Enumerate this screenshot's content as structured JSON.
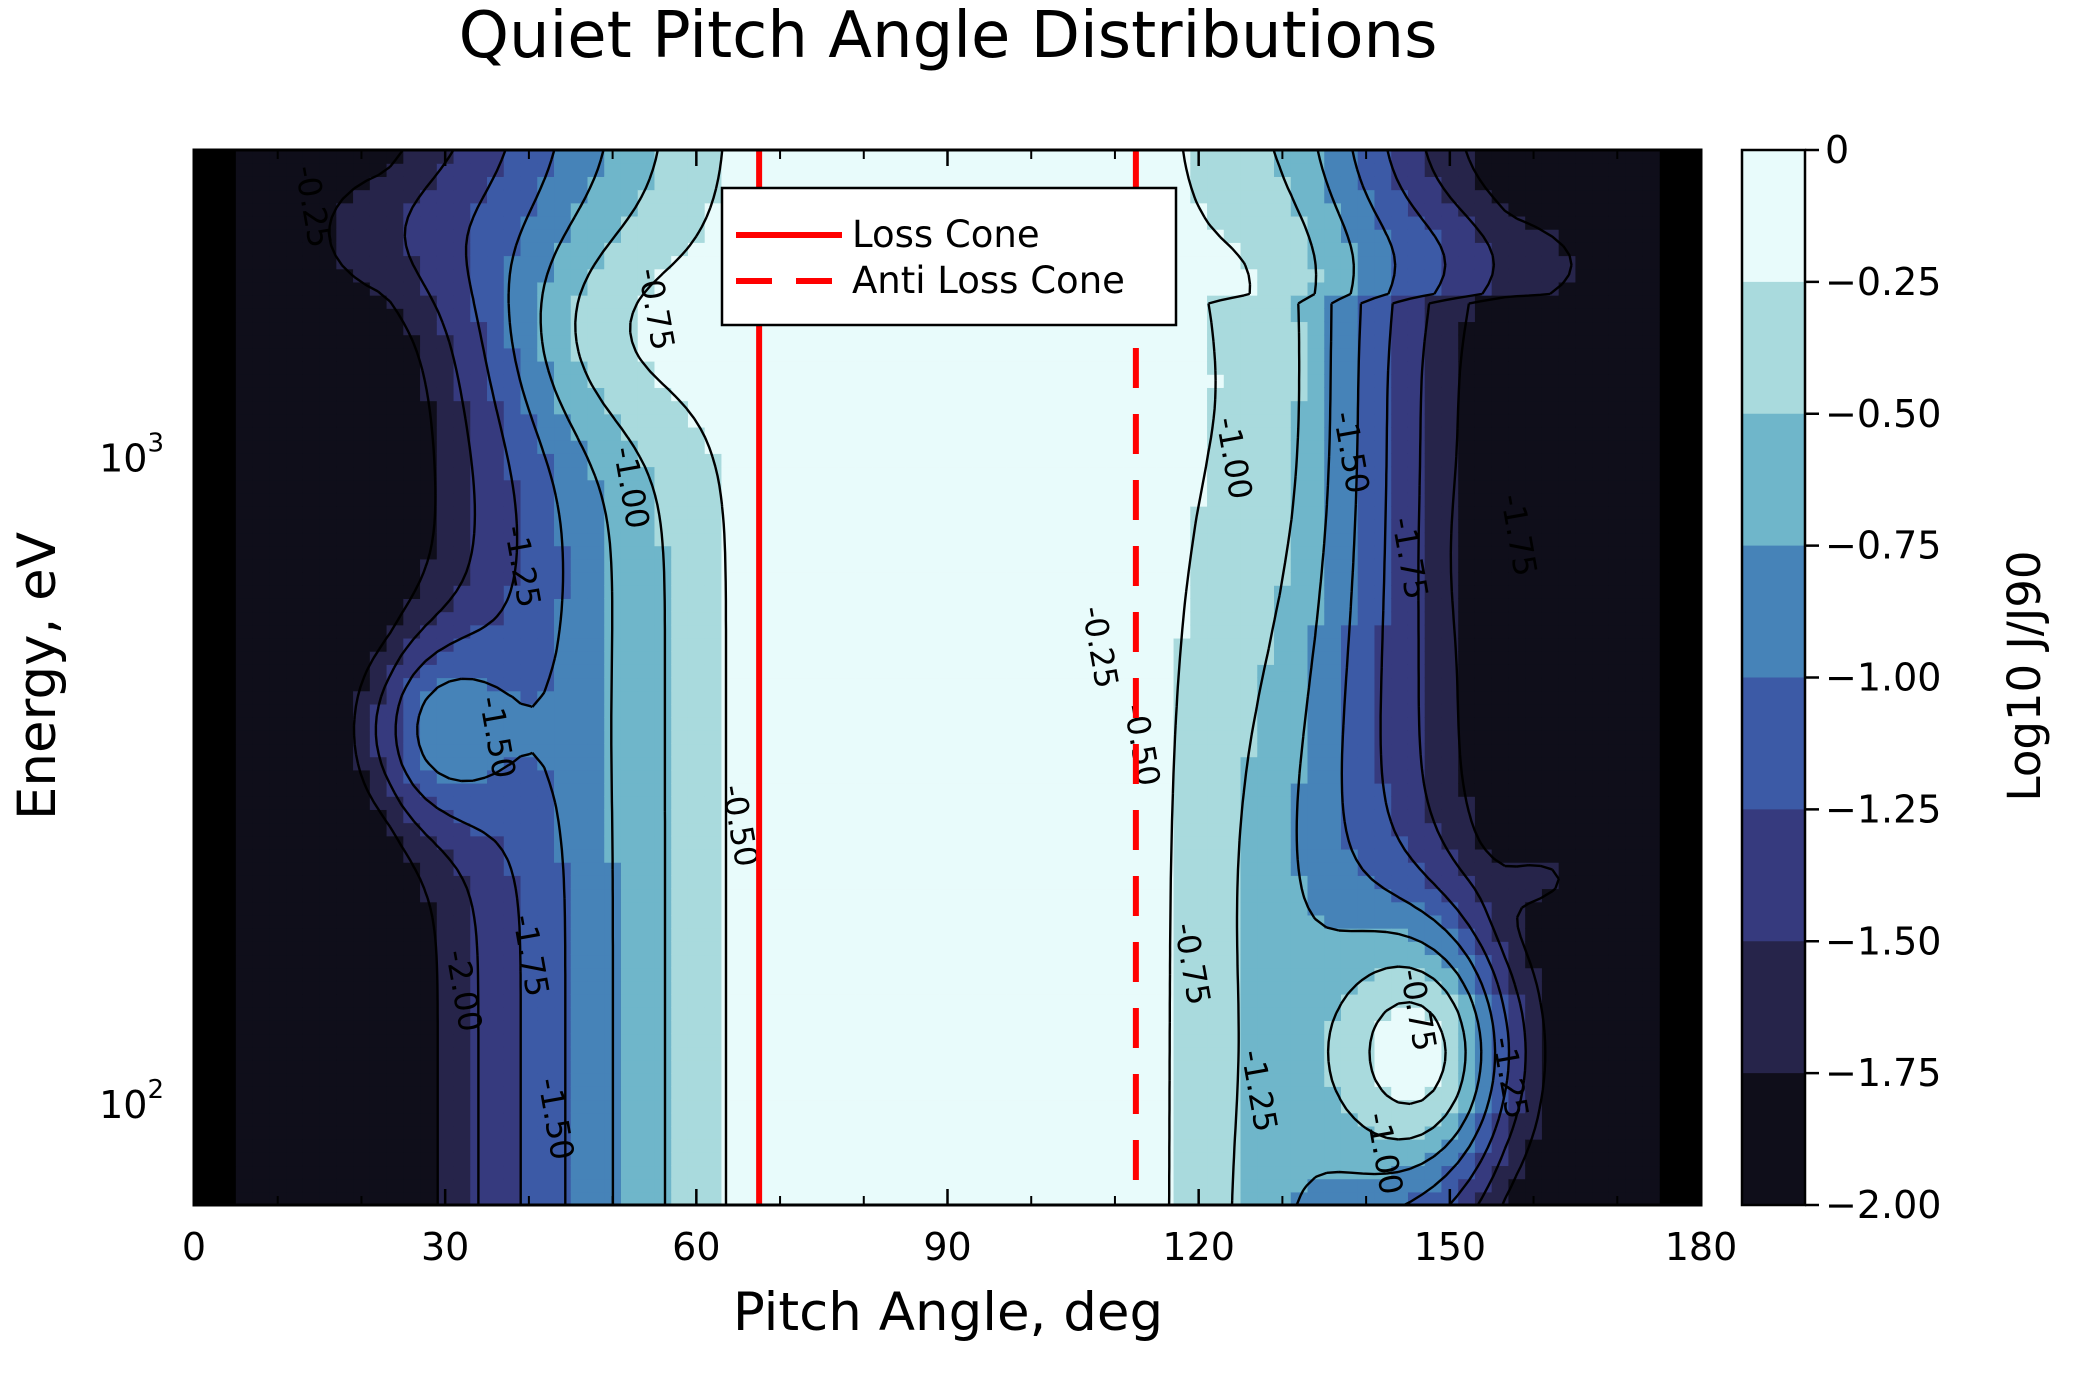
{
  "chart_data": {
    "type": "contour",
    "title": "Quiet Pitch Angle Distributions",
    "xlabel": "Pitch Angle, deg",
    "ylabel": "Energy, eV",
    "xlim": [
      0,
      180
    ],
    "ylim": [
      70,
      3000
    ],
    "yscale": "log",
    "x_ticks": [
      0,
      30,
      60,
      90,
      120,
      150,
      180
    ],
    "x_tick_labels": [
      "0",
      "30",
      "60",
      "90",
      "120",
      "150",
      "180"
    ],
    "y_ticks": [
      100,
      1000
    ],
    "y_tick_labels": [
      {
        "base": "10",
        "exp": "2"
      },
      {
        "base": "10",
        "exp": "3"
      }
    ],
    "colorbar": {
      "label": "Log10 J/J90",
      "range": [
        -2.0,
        0
      ],
      "ticks": [
        0,
        -0.25,
        -0.5,
        -0.75,
        -1.0,
        -1.25,
        -1.5,
        -1.75,
        -2.0
      ],
      "tick_labels": [
        "0",
        "−0.25",
        "−0.50",
        "−0.75",
        "−1.00",
        "−1.25",
        "−1.50",
        "−1.75",
        "−2.00"
      ],
      "colors": [
        "#e8fbfb",
        "#a9dadd",
        "#6fb6ca",
        "#4683b8",
        "#3c5aa6",
        "#363a7e",
        "#26244a",
        "#0f0e1a"
      ]
    },
    "no_data_color": "#000000",
    "contour_levels": [
      -2.0,
      -1.75,
      -1.5,
      -1.25,
      -1.0,
      -0.75,
      -0.5,
      -0.25,
      0
    ],
    "contour_labels": [
      {
        "text": "-0.25",
        "x": 14,
        "y": 2450
      },
      {
        "text": "-0.75",
        "x": 55,
        "y": 1700
      },
      {
        "text": "-1.00",
        "x": 52,
        "y": 900
      },
      {
        "text": "-1.25",
        "x": 39,
        "y": 680
      },
      {
        "text": "-1.50",
        "x": 36,
        "y": 370
      },
      {
        "text": "-1.75",
        "x": 40,
        "y": 170
      },
      {
        "text": "-2.00",
        "x": 32,
        "y": 150
      },
      {
        "text": "-1.50",
        "x": 43,
        "y": 95
      },
      {
        "text": "-0.50",
        "x": 65,
        "y": 270
      },
      {
        "text": "-0.25",
        "x": 108,
        "y": 510
      },
      {
        "text": "-0.50",
        "x": 113,
        "y": 360
      },
      {
        "text": "-0.75",
        "x": 119,
        "y": 165
      },
      {
        "text": "-1.00",
        "x": 124,
        "y": 1000
      },
      {
        "text": "-1.25",
        "x": 127,
        "y": 105
      },
      {
        "text": "-1.50",
        "x": 138,
        "y": 1020
      },
      {
        "text": "-1.75",
        "x": 145,
        "y": 700
      },
      {
        "text": "-0.75",
        "x": 146,
        "y": 140
      },
      {
        "text": "-1.00",
        "x": 142,
        "y": 84
      },
      {
        "text": "-1.25",
        "x": 157,
        "y": 110
      },
      {
        "text": "-1.75",
        "x": 158,
        "y": 760
      }
    ],
    "vlines": [
      {
        "name": "Loss Cone",
        "x": 67.5,
        "style": "solid",
        "color": "#ff0000"
      },
      {
        "name": "Anti Loss Cone",
        "x": 112.5,
        "style": "dashed",
        "color": "#ff0000"
      }
    ],
    "legend": {
      "position": "upper center",
      "entries": [
        "Loss Cone",
        "Anti Loss Cone"
      ]
    }
  }
}
